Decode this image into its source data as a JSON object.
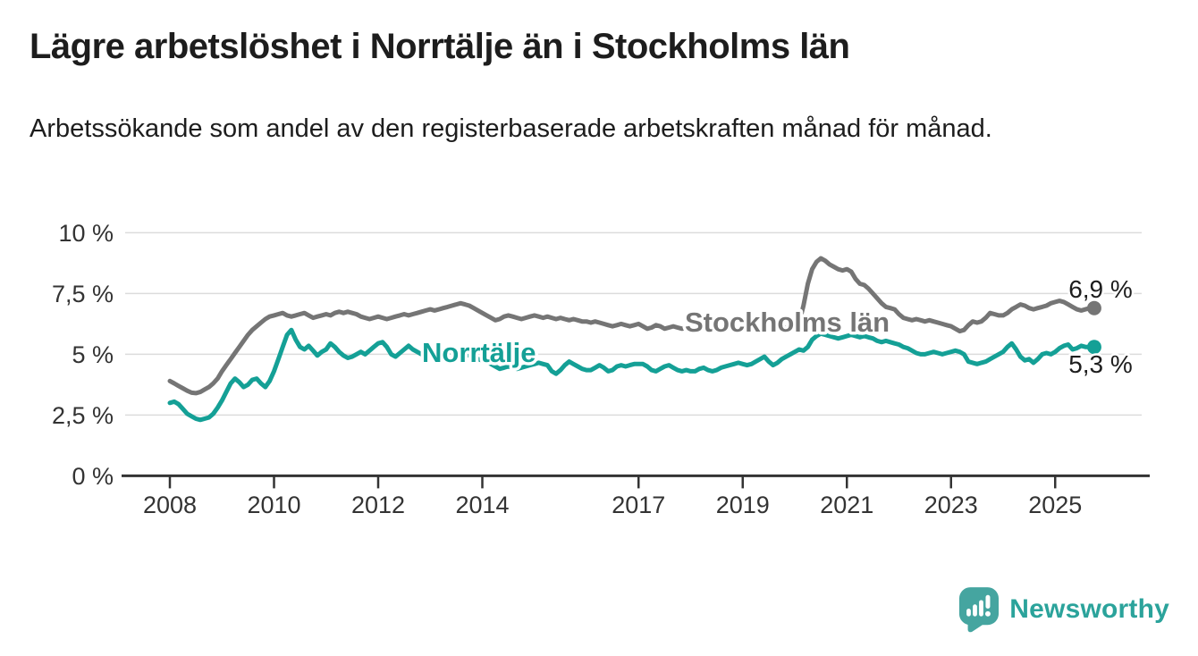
{
  "header": {
    "title": "Lägre arbetslöshet i Norrtälje än i Stockholms län",
    "subtitle": "Arbetssökande som andel av den registerbaserade arbetskraften månad för månad."
  },
  "chart_data": {
    "type": "line",
    "unit": "%",
    "grid": "horizontal-only",
    "legend_position": "inline-labels-on-lines",
    "ylim": [
      0,
      10
    ],
    "x_start": "2008-01",
    "x_end": "2025-10",
    "x_interval": "monthly",
    "x_ticks": [
      2008,
      2010,
      2012,
      2014,
      2017,
      2019,
      2021,
      2023,
      2025
    ],
    "y_ticks": [
      {
        "value": 0,
        "label": "0 %"
      },
      {
        "value": 2.5,
        "label": "2,5 %"
      },
      {
        "value": 5,
        "label": "5 %"
      },
      {
        "value": 7.5,
        "label": "7,5 %"
      },
      {
        "value": 10,
        "label": "10 %"
      }
    ],
    "series": [
      {
        "id": "stockholms-lan",
        "name": "Stockholms län",
        "color": "#757575",
        "end_value": 6.9,
        "end_label": "6,9 %",
        "values": [
          3.9,
          3.8,
          3.7,
          3.6,
          3.5,
          3.42,
          3.4,
          3.45,
          3.55,
          3.65,
          3.8,
          4.0,
          4.3,
          4.55,
          4.8,
          5.05,
          5.3,
          5.55,
          5.8,
          6.0,
          6.15,
          6.3,
          6.45,
          6.55,
          6.6,
          6.65,
          6.7,
          6.6,
          6.55,
          6.6,
          6.65,
          6.7,
          6.6,
          6.5,
          6.55,
          6.6,
          6.65,
          6.6,
          6.7,
          6.75,
          6.7,
          6.75,
          6.7,
          6.65,
          6.55,
          6.5,
          6.45,
          6.5,
          6.55,
          6.5,
          6.45,
          6.5,
          6.55,
          6.6,
          6.65,
          6.6,
          6.65,
          6.7,
          6.75,
          6.8,
          6.85,
          6.8,
          6.85,
          6.9,
          6.95,
          7.0,
          7.05,
          7.1,
          7.05,
          7.0,
          6.9,
          6.8,
          6.7,
          6.6,
          6.5,
          6.4,
          6.45,
          6.55,
          6.6,
          6.55,
          6.5,
          6.45,
          6.5,
          6.55,
          6.6,
          6.55,
          6.5,
          6.55,
          6.5,
          6.45,
          6.5,
          6.45,
          6.4,
          6.45,
          6.4,
          6.35,
          6.35,
          6.3,
          6.35,
          6.3,
          6.25,
          6.2,
          6.15,
          6.2,
          6.25,
          6.2,
          6.15,
          6.2,
          6.25,
          6.15,
          6.05,
          6.1,
          6.2,
          6.15,
          6.05,
          6.1,
          6.15,
          6.1,
          6.05,
          6.1,
          6.1,
          6.05,
          6.0,
          6.05,
          6.1,
          6.05,
          6.0,
          6.05,
          6.1,
          6.05,
          6.0,
          6.0,
          6.0,
          6.05,
          6.0,
          6.05,
          6.1,
          6.05,
          6.1,
          6.05,
          6.1,
          6.1,
          6.1,
          6.15,
          6.2,
          6.3,
          7.0,
          7.9,
          8.5,
          8.8,
          8.95,
          8.85,
          8.7,
          8.6,
          8.5,
          8.45,
          8.5,
          8.4,
          8.1,
          7.9,
          7.85,
          7.7,
          7.5,
          7.3,
          7.1,
          6.95,
          6.9,
          6.85,
          6.65,
          6.5,
          6.45,
          6.4,
          6.45,
          6.4,
          6.35,
          6.4,
          6.35,
          6.3,
          6.25,
          6.2,
          6.15,
          6.05,
          5.95,
          6.0,
          6.2,
          6.35,
          6.3,
          6.35,
          6.5,
          6.7,
          6.65,
          6.6,
          6.6,
          6.7,
          6.85,
          6.95,
          7.05,
          7.0,
          6.9,
          6.85,
          6.9,
          6.95,
          7.0,
          7.1,
          7.15,
          7.2,
          7.15,
          7.05,
          6.95,
          6.85,
          6.8,
          6.85,
          6.9,
          6.9
        ]
      },
      {
        "id": "norrtalje",
        "name": "Norrtälje",
        "color": "#14a096",
        "end_value": 5.3,
        "end_label": "5,3 %",
        "values": [
          3.0,
          3.05,
          2.95,
          2.75,
          2.55,
          2.45,
          2.35,
          2.3,
          2.35,
          2.4,
          2.55,
          2.8,
          3.1,
          3.45,
          3.8,
          4.0,
          3.85,
          3.65,
          3.75,
          3.95,
          4.0,
          3.8,
          3.65,
          3.9,
          4.3,
          4.8,
          5.3,
          5.8,
          6.0,
          5.6,
          5.3,
          5.2,
          5.35,
          5.15,
          4.95,
          5.1,
          5.2,
          5.45,
          5.3,
          5.1,
          4.95,
          4.85,
          4.9,
          5.0,
          5.1,
          5.0,
          5.15,
          5.3,
          5.45,
          5.5,
          5.3,
          5.0,
          4.9,
          5.05,
          5.2,
          5.35,
          5.2,
          5.1,
          5.0,
          5.1,
          5.2,
          5.15,
          5.05,
          5.1,
          5.15,
          5.05,
          4.95,
          5.0,
          5.05,
          4.95,
          4.85,
          4.8,
          4.75,
          4.7,
          4.6,
          4.5,
          4.4,
          4.45,
          4.5,
          4.45,
          4.4,
          4.45,
          4.5,
          4.55,
          4.6,
          4.65,
          4.6,
          4.55,
          4.3,
          4.2,
          4.35,
          4.55,
          4.7,
          4.6,
          4.5,
          4.4,
          4.35,
          4.35,
          4.45,
          4.55,
          4.45,
          4.3,
          4.35,
          4.5,
          4.55,
          4.5,
          4.55,
          4.6,
          4.6,
          4.6,
          4.5,
          4.35,
          4.3,
          4.4,
          4.5,
          4.55,
          4.45,
          4.35,
          4.3,
          4.35,
          4.3,
          4.3,
          4.4,
          4.45,
          4.35,
          4.3,
          4.35,
          4.45,
          4.5,
          4.55,
          4.6,
          4.65,
          4.6,
          4.55,
          4.6,
          4.7,
          4.8,
          4.9,
          4.7,
          4.55,
          4.65,
          4.8,
          4.9,
          5.0,
          5.1,
          5.2,
          5.15,
          5.3,
          5.6,
          5.75,
          5.85,
          5.8,
          5.75,
          5.7,
          5.65,
          5.7,
          5.75,
          5.8,
          5.75,
          5.7,
          5.75,
          5.7,
          5.65,
          5.55,
          5.5,
          5.55,
          5.5,
          5.45,
          5.4,
          5.3,
          5.25,
          5.15,
          5.05,
          5.0,
          5.0,
          5.05,
          5.1,
          5.05,
          5.0,
          5.05,
          5.1,
          5.15,
          5.1,
          5.0,
          4.7,
          4.65,
          4.6,
          4.65,
          4.7,
          4.8,
          4.9,
          5.0,
          5.1,
          5.3,
          5.45,
          5.2,
          4.9,
          4.75,
          4.8,
          4.65,
          4.8,
          5.0,
          5.05,
          5.0,
          5.1,
          5.25,
          5.35,
          5.4,
          5.2,
          5.25,
          5.35,
          5.3,
          5.3,
          5.3
        ]
      }
    ]
  },
  "footer": {
    "brand": "Newsworthy"
  }
}
